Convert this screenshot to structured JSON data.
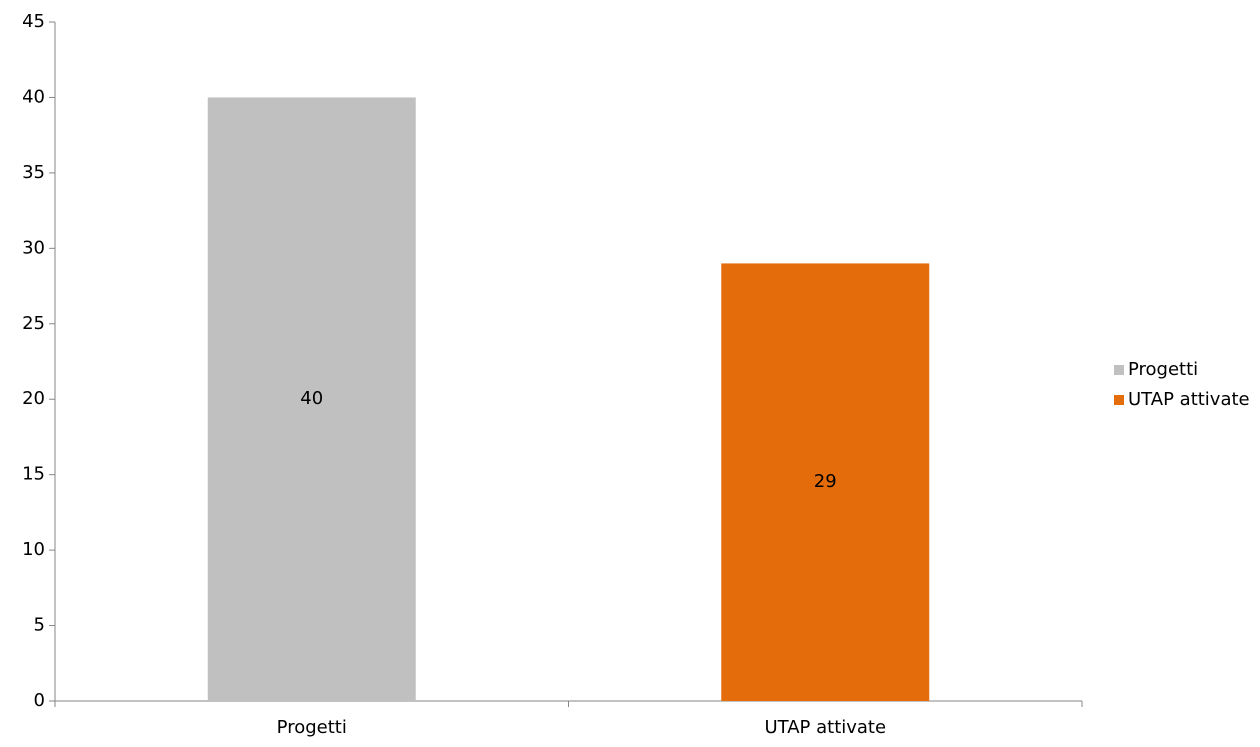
{
  "chart_data": {
    "type": "bar",
    "categories": [
      "Progetti",
      "UTAP attivate"
    ],
    "series": [
      {
        "values": [
          40,
          29
        ],
        "point_colors": [
          "#C0C0C0",
          "#E46C0A"
        ]
      }
    ],
    "data_labels": [
      "40",
      "29"
    ],
    "ylim": [
      0,
      45
    ],
    "yticks": [
      0,
      5,
      10,
      15,
      20,
      25,
      30,
      35,
      40,
      45
    ],
    "ytick_labels": [
      "0",
      "5",
      "10",
      "15",
      "20",
      "25",
      "30",
      "35",
      "40",
      "45"
    ],
    "xlabel": "",
    "ylabel": "",
    "title": "",
    "grid": false,
    "legend": {
      "placement": "right",
      "entries": [
        {
          "label": "Progetti",
          "color": "#C0C0C0"
        },
        {
          "label": "UTAP attivate",
          "color": "#E46C0A"
        }
      ]
    },
    "axis_color": "#868686"
  }
}
